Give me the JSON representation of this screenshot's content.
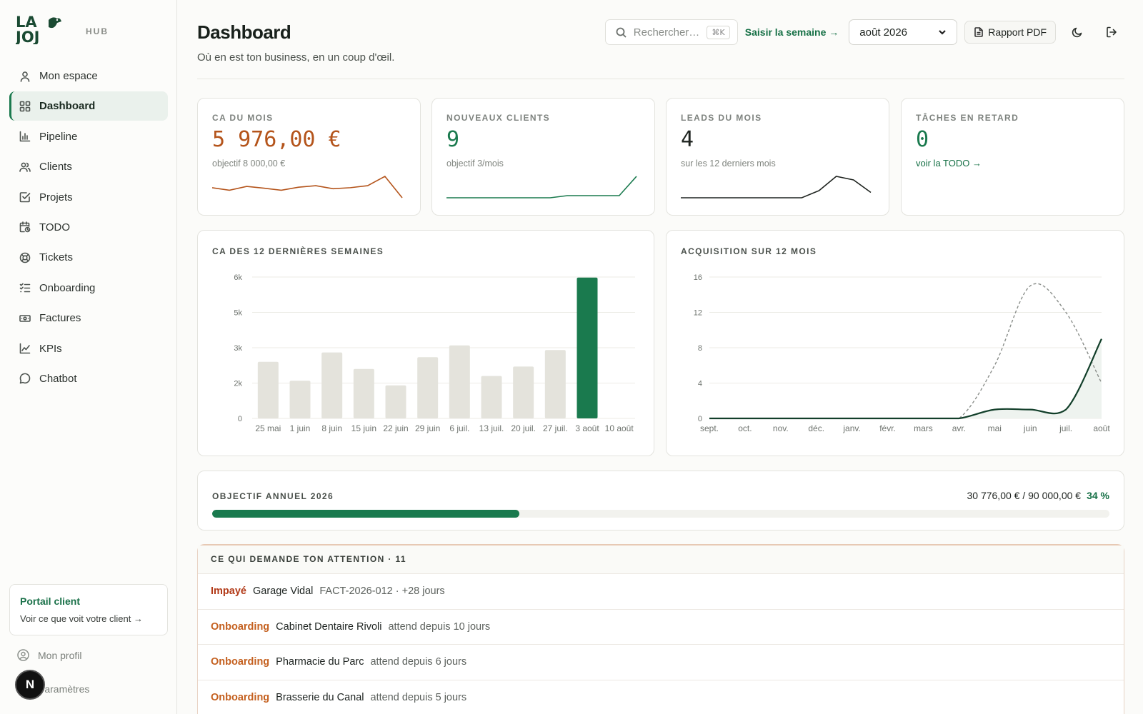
{
  "brand": {
    "logo_text": "LA JOJ",
    "sub": "HUB"
  },
  "sidebar": {
    "items": [
      {
        "label": "Mon espace",
        "icon": "user-icon",
        "active": false
      },
      {
        "label": "Dashboard",
        "icon": "grid-icon",
        "active": true
      },
      {
        "label": "Pipeline",
        "icon": "bar-chart-icon",
        "active": false
      },
      {
        "label": "Clients",
        "icon": "users-icon",
        "active": false
      },
      {
        "label": "Projets",
        "icon": "check-square-icon",
        "active": false
      },
      {
        "label": "TODO",
        "icon": "calendar-clock-icon",
        "active": false
      },
      {
        "label": "Tickets",
        "icon": "lifebuoy-icon",
        "active": false
      },
      {
        "label": "Onboarding",
        "icon": "list-checks-icon",
        "active": false
      },
      {
        "label": "Factures",
        "icon": "banknote-icon",
        "active": false
      },
      {
        "label": "KPIs",
        "icon": "line-chart-icon",
        "active": false
      },
      {
        "label": "Chatbot",
        "icon": "message-circle-icon",
        "active": false
      }
    ],
    "portal": {
      "title": "Portail client",
      "subtitle": "Voir ce que voit votre client →"
    },
    "profile": "Mon profil",
    "settings": "Paramètres",
    "badge": "N"
  },
  "header": {
    "title": "Dashboard",
    "subtitle": "Où en est ton business, en un coup d'œil.",
    "search_placeholder": "Rechercher…",
    "search_shortcut": "⌘K",
    "week_link": "Saisir la semaine →",
    "month": "août 2026",
    "pdf_button": "Rapport PDF"
  },
  "kpis": [
    {
      "label": "CA DU MOIS",
      "value": "5 976,00 €",
      "sub": "objectif 8 000,00 €",
      "color": "#b4541b",
      "spark": [
        5,
        4,
        5.5,
        4.8,
        4,
        5.2,
        5.8,
        4.6,
        5,
        5.8,
        9.5,
        1
      ]
    },
    {
      "label": "NOUVEAUX CLIENTS",
      "value": "9",
      "sub": "objectif 3/mois",
      "color": "#1a7a4e",
      "spark": [
        0,
        0,
        0,
        0,
        0,
        0,
        0,
        0.25,
        0.25,
        0.25,
        0.25,
        2.5
      ]
    },
    {
      "label": "LEADS DU MOIS",
      "value": "4",
      "sub": "sur les 12 derniers mois",
      "color": "#1f2420",
      "spark": [
        0,
        0,
        0,
        0,
        0,
        0,
        0,
        0,
        0.2,
        0.6,
        0.5,
        0.15
      ]
    },
    {
      "label": "TÂCHES EN RETARD",
      "value": "0",
      "link": "voir la TODO →",
      "color": "#1a7a4e"
    }
  ],
  "revenue_chart": {
    "title": "CA DES 12 DERNIÈRES SEMAINES",
    "y_ticks": [
      "0",
      "2k",
      "3k",
      "5k",
      "6k"
    ],
    "y_tick_values": [
      0,
      1500,
      3000,
      4500,
      6000
    ],
    "categories": [
      "25 mai",
      "1 juin",
      "8 juin",
      "15 juin",
      "22 juin",
      "29 juin",
      "6 juil.",
      "13 juil.",
      "20 juil.",
      "27 juil.",
      "3 août",
      "10 août"
    ],
    "values": [
      2400,
      1600,
      2800,
      2100,
      1400,
      2600,
      3100,
      1800,
      2200,
      2900,
      5976,
      0
    ],
    "highlight_index": 10,
    "bar_color": "#e4e3dc",
    "highlight_color": "#1a7a4e"
  },
  "acquisition_chart": {
    "title": "ACQUISITION SUR 12 MOIS",
    "y_ticks": [
      "0",
      "4",
      "8",
      "12",
      "16"
    ],
    "y_tick_values": [
      0,
      4,
      8,
      12,
      16
    ],
    "categories": [
      "sept.",
      "oct.",
      "nov.",
      "déc.",
      "janv.",
      "févr.",
      "mars",
      "avr.",
      "mai",
      "juin",
      "juil.",
      "août"
    ],
    "solid": [
      0,
      0,
      0,
      0,
      0,
      0,
      0,
      0,
      1,
      1,
      1,
      9
    ],
    "dashed": [
      0,
      0,
      0,
      0,
      0,
      0,
      0,
      0,
      6,
      15,
      12,
      4
    ]
  },
  "goal": {
    "label": "OBJECTIF ANNUEL 2026",
    "amount": "30 776,00 € / 90 000,00 €",
    "pct": "34 %",
    "fraction": 0.342
  },
  "attention": {
    "title": "CE QUI DEMANDE TON ATTENTION · 11",
    "rows": [
      {
        "tag": "Impayé",
        "tone": "red",
        "name": "Garage Vidal",
        "meta": "FACT-2026-012 · +28 jours"
      },
      {
        "tag": "Onboarding",
        "tone": "orange",
        "name": "Cabinet Dentaire Rivoli",
        "meta": "attend depuis 10 jours"
      },
      {
        "tag": "Onboarding",
        "tone": "orange",
        "name": "Pharmacie du Parc",
        "meta": "attend depuis 6 jours"
      },
      {
        "tag": "Onboarding",
        "tone": "orange",
        "name": "Brasserie du Canal",
        "meta": "attend depuis 5 jours"
      }
    ]
  }
}
